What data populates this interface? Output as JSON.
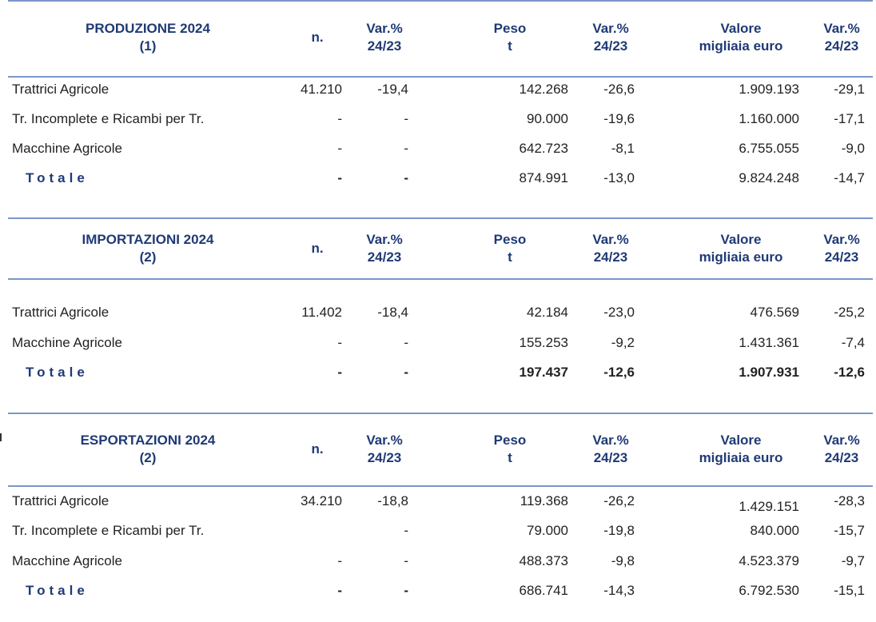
{
  "columns": {
    "n": "n.",
    "var1": [
      "Var.%",
      "24/23"
    ],
    "peso": [
      "Peso",
      "t"
    ],
    "var2": [
      "Var.%",
      "24/23"
    ],
    "valore": [
      "Valore",
      "migliaia euro"
    ],
    "var3": [
      "Var.%",
      "24/23"
    ]
  },
  "sections": [
    {
      "title": [
        "PRODUZIONE 2024",
        "(1)"
      ],
      "rows": [
        {
          "label": "Trattrici Agricole",
          "n": "41.210",
          "var_n": "-19,4",
          "peso": "142.268",
          "var_peso": "-26,6",
          "valore": "1.909.193",
          "var_valore": "-29,1"
        },
        {
          "label": "Tr. Incomplete e Ricambi per Tr.",
          "n": "-",
          "var_n": "-",
          "peso": "90.000",
          "var_peso": "-19,6",
          "valore": "1.160.000",
          "var_valore": "-17,1"
        },
        {
          "label": "Macchine  Agricole",
          "n": "-",
          "var_n": "-",
          "peso": "642.723",
          "var_peso": "-8,1",
          "valore": "6.755.055",
          "var_valore": "-9,0"
        }
      ],
      "total": {
        "label": "Totale",
        "n": "-",
        "var_n": "-",
        "peso": "874.991",
        "var_peso": "-13,0",
        "valore": "9.824.248",
        "var_valore": "-14,7",
        "bold_values": false
      }
    },
    {
      "title": [
        "IMPORTAZIONI 2024",
        "(2)"
      ],
      "rows": [
        {
          "label": "Trattrici Agricole",
          "n": "11.402",
          "var_n": "-18,4",
          "peso": "42.184",
          "var_peso": "-23,0",
          "valore": "476.569",
          "var_valore": "-25,2"
        },
        {
          "label": "Macchine  Agricole",
          "n": "-",
          "var_n": "-",
          "peso": "155.253",
          "var_peso": "-9,2",
          "valore": "1.431.361",
          "var_valore": "-7,4"
        }
      ],
      "total": {
        "label": "Totale",
        "n": "-",
        "var_n": "-",
        "peso": "197.437",
        "var_peso": "-12,6",
        "valore": "1.907.931",
        "var_valore": "-12,6",
        "bold_values": true
      }
    },
    {
      "title": [
        "ESPORTAZIONI 2024",
        "(2)"
      ],
      "rows": [
        {
          "label": "Trattrici Agricole",
          "n": "34.210",
          "var_n": "-18,8",
          "peso": "119.368",
          "var_peso": "-26,2",
          "valore": "1.429.151",
          "var_valore": "-28,3"
        },
        {
          "label": "Tr. Incomplete e Ricambi per Tr.",
          "n": "",
          "var_n": "-",
          "peso": "79.000",
          "var_peso": "-19,8",
          "valore": "840.000",
          "var_valore": "-15,7"
        },
        {
          "label": "Macchine  Agricole",
          "n": "-",
          "var_n": "-",
          "peso": "488.373",
          "var_peso": "-9,8",
          "valore": "4.523.379",
          "var_valore": "-9,7"
        }
      ],
      "total": {
        "label": "Totale",
        "n": "-",
        "var_n": "-",
        "peso": "686.741",
        "var_peso": "-14,3",
        "valore": "6.792.530",
        "var_valore": "-15,1",
        "bold_values": false
      }
    }
  ],
  "colors": {
    "header_text": "#1f3a75",
    "rule": "#7b96c8",
    "body_text": "#222222"
  }
}
